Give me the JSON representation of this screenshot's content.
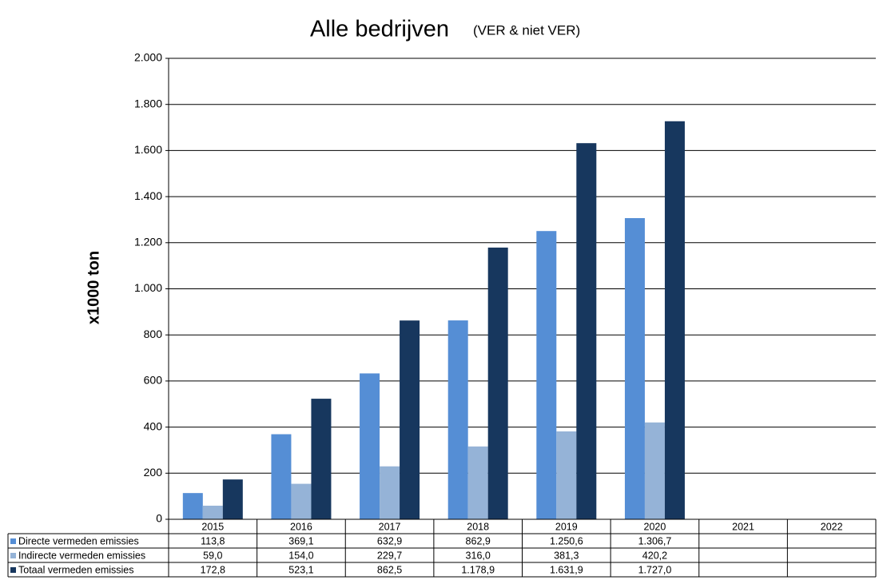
{
  "chart_data": {
    "type": "bar",
    "title": "Alle bedrijven",
    "subtitle": "(VER & niet VER)",
    "y_label": "x1000 ton",
    "categories": [
      "2015",
      "2016",
      "2017",
      "2018",
      "2019",
      "2020",
      "2021",
      "2022"
    ],
    "series": [
      {
        "name": "Directe vermeden emissies",
        "color": "#558ed5",
        "values": [
          113.8,
          369.1,
          632.9,
          862.9,
          1250.6,
          1306.7,
          null,
          null
        ],
        "value_labels": [
          "113,8",
          "369,1",
          "632,9",
          "862,9",
          "1.250,6",
          "1.306,7",
          null,
          null
        ]
      },
      {
        "name": "Indirecte vermeden emissies",
        "color": "#95b3d7",
        "values": [
          59.0,
          154.0,
          229.7,
          316.0,
          381.3,
          420.2,
          null,
          null
        ],
        "value_labels": [
          "59,0",
          "154,0",
          "229,7",
          "316,0",
          "381,3",
          "420,2",
          null,
          null
        ]
      },
      {
        "name": "Totaal vermeden emissies",
        "color": "#17375e",
        "values": [
          172.8,
          523.1,
          862.5,
          1178.9,
          1631.9,
          1727.0,
          null,
          null
        ],
        "value_labels": [
          "172,8",
          "523,1",
          "862,5",
          "1.178,9",
          "1.631,9",
          "1.727,0",
          null,
          null
        ]
      }
    ],
    "ylim": [
      0,
      2000
    ],
    "yticks": [
      0,
      200,
      400,
      600,
      800,
      {
        "value": 1000,
        "label": "1.000"
      },
      {
        "value": 1200,
        "label": "1.200"
      },
      {
        "value": 1400,
        "label": "1.400"
      },
      {
        "value": 1600,
        "label": "1.600"
      },
      {
        "value": 1800,
        "label": "1.800"
      },
      {
        "value": 2000,
        "label": "2.000"
      }
    ],
    "grid": true
  }
}
